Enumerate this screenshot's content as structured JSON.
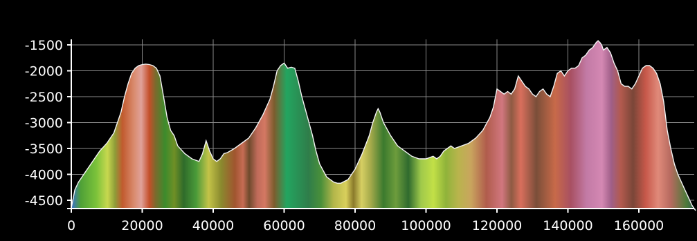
{
  "chart_data": {
    "type": "area",
    "title": "",
    "xlabel": "",
    "ylabel": "",
    "xlim": [
      0,
      176000
    ],
    "ylim": [
      -4700,
      -1350
    ],
    "grid": true,
    "colors": {
      "background": "#000000",
      "grid": "#8a8a8a",
      "profile_line": "#f4f4f4",
      "tick_label": "#ffffff"
    },
    "x_ticks": [
      0,
      20000,
      40000,
      60000,
      80000,
      100000,
      120000,
      140000,
      160000
    ],
    "x_tick_labels": [
      "0",
      "20000",
      "40000",
      "60000",
      "80000",
      "100000",
      "120000",
      "140000",
      "160000"
    ],
    "y_ticks": [
      -1500,
      -2000,
      -2500,
      -3000,
      -3500,
      -4000,
      -4500
    ],
    "y_tick_labels": [
      "-1500",
      "-2000",
      "-2500",
      "-3000",
      "-3500",
      "-4000",
      "-4500"
    ],
    "series": [
      {
        "x": [
          0,
          1000,
          2000,
          4000,
          6000,
          8000,
          10000,
          12000,
          14000,
          15000,
          16000,
          17000,
          18000,
          19000,
          20000,
          21000,
          22000,
          23000,
          24000,
          25000,
          26000,
          27000,
          28000,
          29000,
          30000,
          32000,
          34000,
          36000,
          37000,
          38000,
          39000,
          40000,
          41000,
          42000,
          43000,
          44000,
          46000,
          48000,
          50000,
          52000,
          54000,
          55000,
          56000,
          57000,
          58000,
          59000,
          60000,
          61000,
          62000,
          63000,
          64000,
          65000,
          66000,
          67000,
          68000,
          69000,
          70000,
          72000,
          74000,
          75000,
          76000,
          78000,
          80000,
          82000,
          84000,
          85000,
          86000,
          86500,
          87000,
          87500,
          88000,
          90000,
          92000,
          94000,
          96000,
          98000,
          100000,
          102000,
          103000,
          104000,
          105000,
          106000,
          107000,
          108000,
          110000,
          112000,
          114000,
          116000,
          118000,
          119000,
          120000,
          121000,
          122000,
          123000,
          124000,
          125000,
          126000,
          127000,
          128000,
          129000,
          130000,
          131000,
          132000,
          133000,
          134000,
          135000,
          136000,
          137000,
          138000,
          139000,
          140000,
          141000,
          142000,
          143000,
          144000,
          145000,
          146000,
          147000,
          148000,
          148500,
          149000,
          149500,
          150000,
          151000,
          152000,
          153000,
          154000,
          155000,
          156000,
          157000,
          158000,
          159000,
          160000,
          161000,
          162000,
          163000,
          164000,
          165000,
          166000,
          167000,
          168000,
          169000,
          170000,
          171000,
          172000,
          173000,
          174000,
          175000,
          176000
        ],
        "values": [
          -4650,
          -4300,
          -4150,
          -3950,
          -3750,
          -3550,
          -3400,
          -3200,
          -2800,
          -2500,
          -2250,
          -2050,
          -1950,
          -1900,
          -1880,
          -1870,
          -1880,
          -1900,
          -1950,
          -2100,
          -2500,
          -2900,
          -3150,
          -3250,
          -3450,
          -3600,
          -3700,
          -3750,
          -3600,
          -3350,
          -3550,
          -3700,
          -3750,
          -3700,
          -3600,
          -3580,
          -3500,
          -3400,
          -3300,
          -3100,
          -2850,
          -2700,
          -2550,
          -2300,
          -2000,
          -1900,
          -1850,
          -1950,
          -1930,
          -1950,
          -2200,
          -2500,
          -2750,
          -3000,
          -3250,
          -3550,
          -3800,
          -4050,
          -4150,
          -4170,
          -4170,
          -4100,
          -3900,
          -3600,
          -3250,
          -3000,
          -2800,
          -2730,
          -2800,
          -2900,
          -3000,
          -3250,
          -3450,
          -3550,
          -3650,
          -3700,
          -3700,
          -3650,
          -3700,
          -3650,
          -3550,
          -3500,
          -3450,
          -3500,
          -3450,
          -3400,
          -3300,
          -3150,
          -2900,
          -2700,
          -2350,
          -2400,
          -2450,
          -2400,
          -2450,
          -2350,
          -2100,
          -2200,
          -2300,
          -2350,
          -2450,
          -2500,
          -2400,
          -2350,
          -2450,
          -2500,
          -2300,
          -2050,
          -2000,
          -2100,
          -2000,
          -1950,
          -1950,
          -1900,
          -1750,
          -1700,
          -1600,
          -1550,
          -1450,
          -1420,
          -1450,
          -1500,
          -1600,
          -1550,
          -1650,
          -1850,
          -2000,
          -2250,
          -2300,
          -2300,
          -2350,
          -2250,
          -2100,
          -1950,
          -1900,
          -1900,
          -1950,
          -2050,
          -2250,
          -2600,
          -3150,
          -3500,
          -3800,
          -4000,
          -4150,
          -4300,
          -4450,
          -4600,
          -4700
        ]
      }
    ]
  }
}
